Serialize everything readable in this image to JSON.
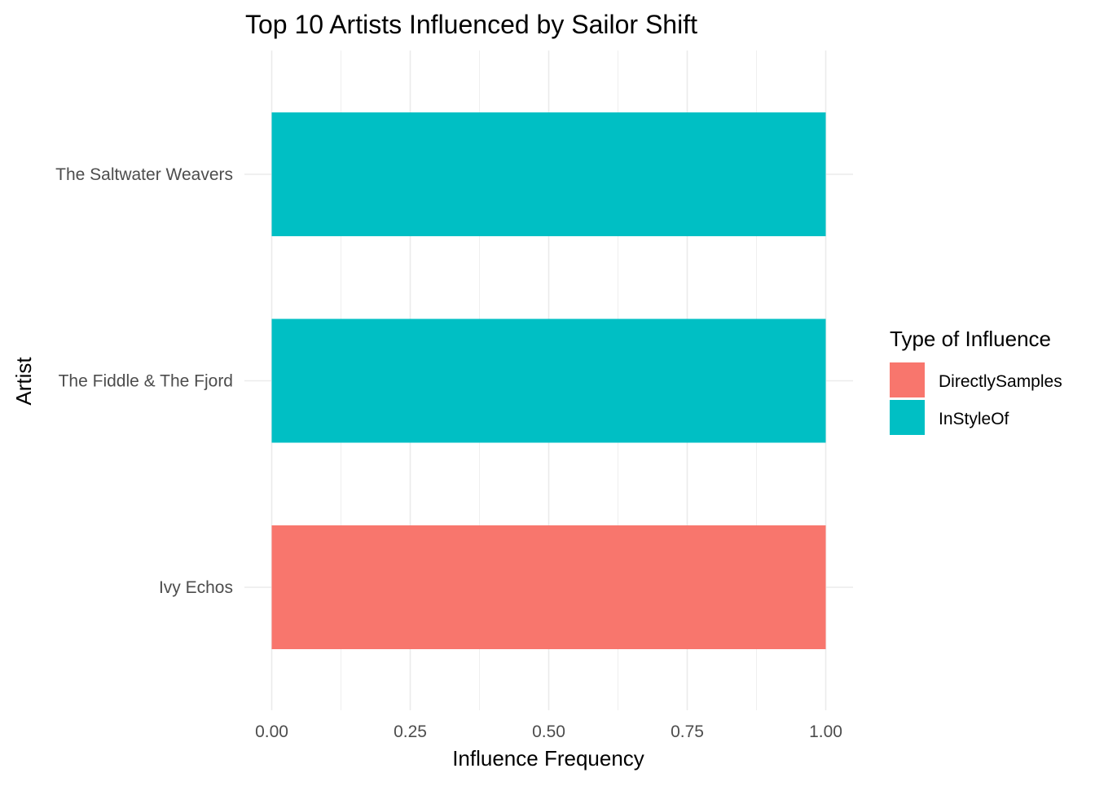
{
  "chart_data": {
    "type": "bar",
    "orientation": "horizontal",
    "stacked": true,
    "title": "Top 10 Artists Influenced by Sailor Shift",
    "xlabel": "Influence Frequency",
    "ylabel": "Artist",
    "categories": [
      "Ivy Echos",
      "The Fiddle & The Fjord",
      "The Saltwater Weavers"
    ],
    "series": [
      {
        "name": "DirectlySamples",
        "color": "#F8766D",
        "values": [
          1,
          0,
          0
        ]
      },
      {
        "name": "InStyleOf",
        "color": "#00BFC4",
        "values": [
          0,
          1,
          1
        ]
      }
    ],
    "xlim": [
      0,
      1
    ],
    "xticks": [
      0,
      0.25,
      0.5,
      0.75,
      1
    ],
    "xtick_labels": [
      "0.00",
      "0.25",
      "0.50",
      "0.75",
      "1.00"
    ],
    "grid": true,
    "legend": {
      "title": "Type of Influence",
      "position": "right",
      "items": [
        "DirectlySamples",
        "InStyleOf"
      ]
    }
  }
}
